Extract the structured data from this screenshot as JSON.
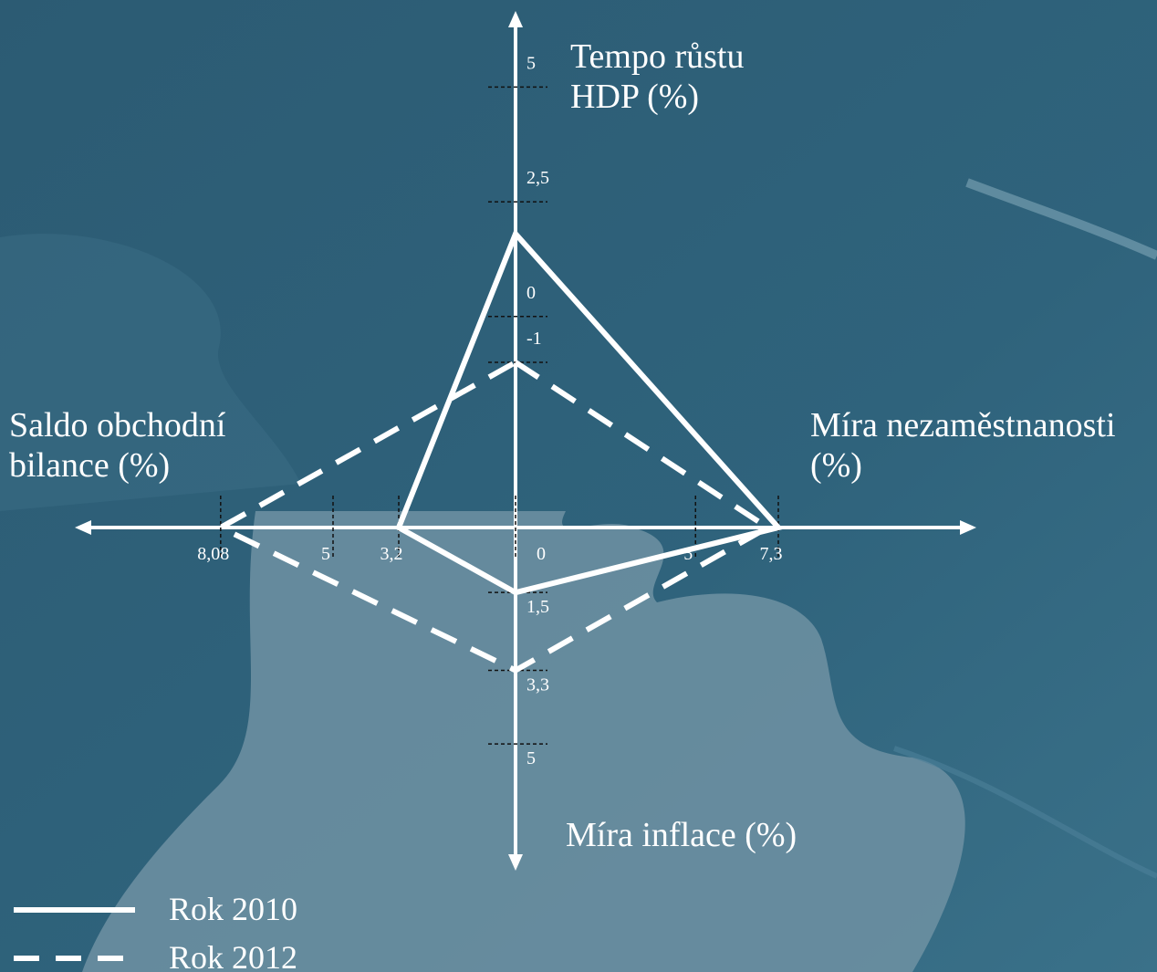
{
  "chart_data": {
    "type": "quadrangle",
    "axes": [
      {
        "label": "Tempo růstu HDP (%)",
        "direction": "up",
        "lim": [
          -4.6,
          6.6
        ],
        "ticks": [
          5,
          {
            "value": 2.5,
            "label": "2,5"
          },
          0,
          -1
        ]
      },
      {
        "label": "Míra nezaměstnanosti (%)",
        "direction": "right",
        "lim": [
          0,
          12.75
        ],
        "ticks": [
          0,
          5,
          {
            "value": 7.3,
            "label": "7,3"
          }
        ]
      },
      {
        "label": "Míra inflace (%)",
        "direction": "down",
        "lim": [
          0,
          7.8
        ],
        "ticks": [
          {
            "value": 1.5,
            "label": "1,5"
          },
          {
            "value": 3.3,
            "label": "3,3"
          },
          5
        ]
      },
      {
        "label": "Saldo obchodní bilance (%)",
        "direction": "left",
        "lim": [
          0,
          12
        ],
        "ticks": [
          {
            "value": 3.2,
            "label": "3,2"
          },
          5,
          {
            "value": 8.08,
            "label": "8,08"
          }
        ]
      }
    ],
    "series": [
      {
        "name": "Rok 2010",
        "color": "#ffffff",
        "line_style": "solid",
        "values": [
          1.8,
          7.3,
          1.5,
          3.2
        ]
      },
      {
        "name": "Rok 2012",
        "color": "#ffffff",
        "line_style": "dashed",
        "values": [
          -1,
          7,
          3.3,
          8.08
        ]
      }
    ]
  }
}
